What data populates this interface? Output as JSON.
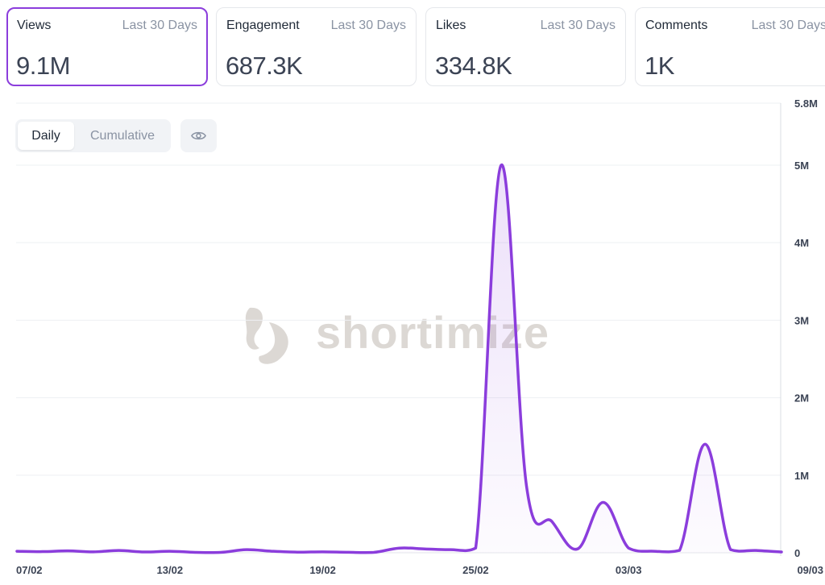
{
  "cards": [
    {
      "label": "Views",
      "period": "Last 30 Days",
      "value": "9.1M",
      "active": true
    },
    {
      "label": "Engagement",
      "period": "Last 30 Days",
      "value": "687.3K",
      "active": false
    },
    {
      "label": "Likes",
      "period": "Last 30 Days",
      "value": "334.8K",
      "active": false
    },
    {
      "label": "Comments",
      "period": "Last 30 Days",
      "value": "1K",
      "active": false
    }
  ],
  "toggle": {
    "daily": "Daily",
    "cumulative": "Cumulative",
    "selected": "Daily"
  },
  "visibility_icon": "eye-icon",
  "watermark": {
    "text": "shortimize"
  },
  "colors": {
    "line": "#8b3ddc",
    "active_border": "#8b3ddc",
    "grid": "#eef0f3"
  },
  "chart_data": {
    "type": "area",
    "x": [
      "07/02",
      "08/02",
      "09/02",
      "10/02",
      "11/02",
      "12/02",
      "13/02",
      "14/02",
      "15/02",
      "16/02",
      "17/02",
      "18/02",
      "19/02",
      "20/02",
      "21/02",
      "22/02",
      "23/02",
      "24/02",
      "25/02",
      "26/02",
      "27/02",
      "28/02",
      "01/03",
      "02/03",
      "03/03",
      "04/03",
      "05/03",
      "06/03",
      "07/03",
      "08/03",
      "09/03"
    ],
    "series": [
      {
        "values": [
          20000,
          15000,
          25000,
          12000,
          30000,
          10000,
          20000,
          5000,
          5000,
          40000,
          20000,
          8000,
          12000,
          6000,
          5000,
          60000,
          50000,
          40000,
          60000,
          5000000,
          850000,
          400000,
          50000,
          650000,
          60000,
          20000,
          30000,
          1400000,
          40000,
          30000,
          10000
        ]
      }
    ],
    "yticks": [
      "0",
      "1M",
      "2M",
      "3M",
      "4M",
      "5M",
      "5.8M"
    ],
    "ytick_values": [
      0,
      1000000,
      2000000,
      3000000,
      4000000,
      5000000,
      5800000
    ],
    "xticks": [
      "07/02",
      "13/02",
      "19/02",
      "25/02",
      "03/03",
      "09/03"
    ],
    "ylim": [
      0,
      5800000
    ],
    "grid": true,
    "y_axis_side": "right"
  }
}
